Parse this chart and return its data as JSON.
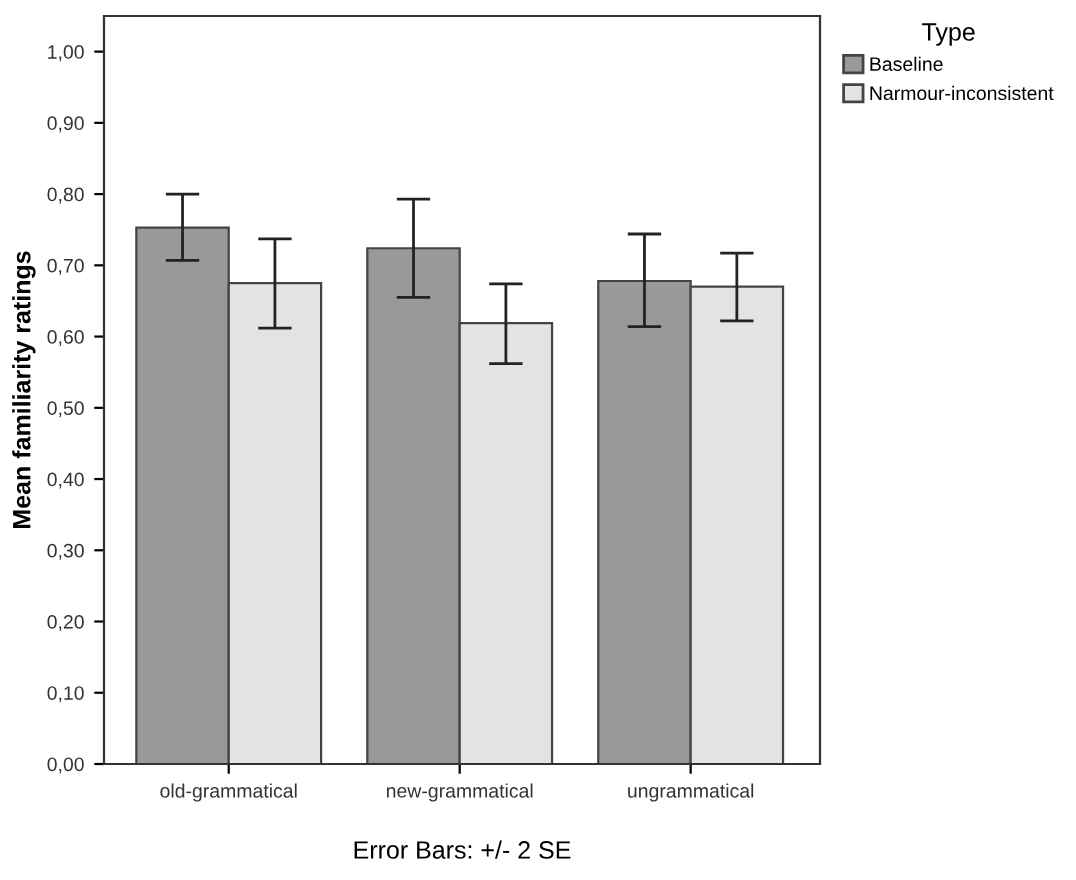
{
  "chart_data": {
    "type": "bar",
    "xlabel": "Error Bars: +/- 2 SE",
    "ylabel": "Mean familiarity ratings",
    "legend_title": "Type",
    "legend": "top right",
    "categories": [
      "old-grammatical",
      "new-grammatical",
      "ungrammatical"
    ],
    "series": [
      {
        "name": "Baseline",
        "color": "#999999",
        "values": [
          0.753,
          0.724,
          0.678
        ],
        "errors": [
          [
            0.707,
            0.8
          ],
          [
            0.655,
            0.793
          ],
          [
            0.614,
            0.744
          ]
        ]
      },
      {
        "name": "Narmour-inconsistent",
        "color": "#e3e3e3",
        "values": [
          0.675,
          0.619,
          0.67
        ],
        "errors": [
          [
            0.612,
            0.737
          ],
          [
            0.562,
            0.674
          ],
          [
            0.622,
            0.717
          ]
        ]
      }
    ],
    "ylim": [
      0,
      1.05
    ],
    "yticks": [
      {
        "value": 0,
        "label": "0,00"
      },
      {
        "value": 0.1,
        "label": "0,10"
      },
      {
        "value": 0.2,
        "label": "0,20"
      },
      {
        "value": 0.3,
        "label": "0,30"
      },
      {
        "value": 0.4,
        "label": "0,40"
      },
      {
        "value": 0.5,
        "label": "0,50"
      },
      {
        "value": 0.6,
        "label": "0,60"
      },
      {
        "value": 0.7,
        "label": "0,70"
      },
      {
        "value": 0.8,
        "label": "0,80"
      },
      {
        "value": 0.9,
        "label": "0,90"
      },
      {
        "value": 1.0,
        "label": "1,00"
      }
    ],
    "grid": false
  }
}
